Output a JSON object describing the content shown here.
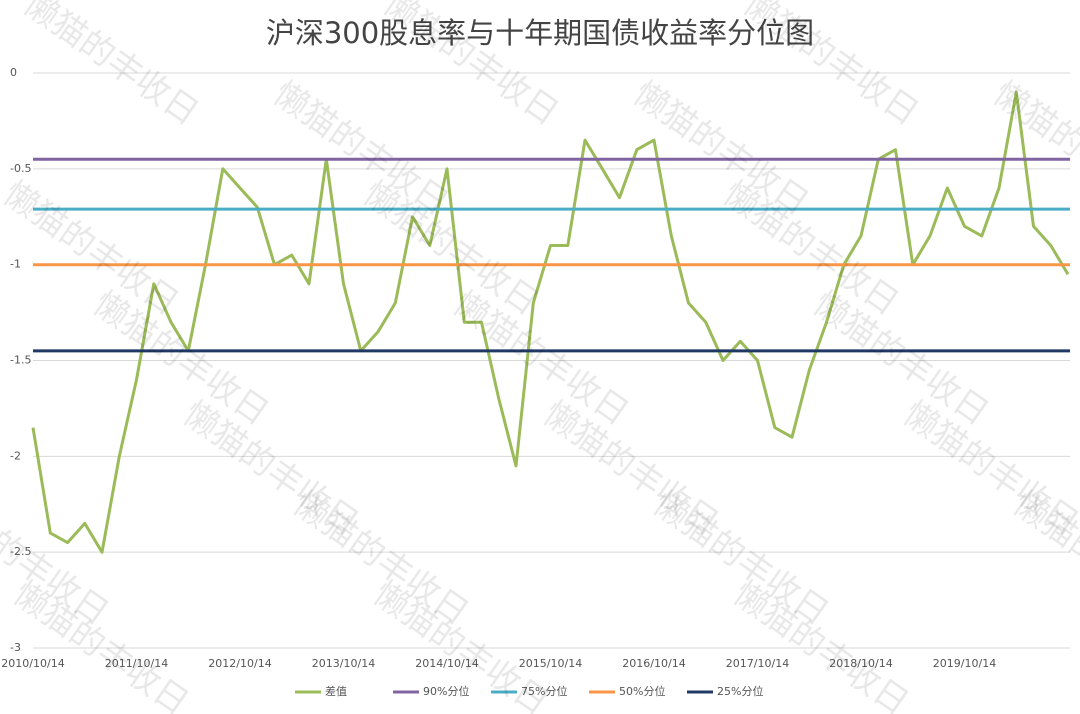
{
  "chart_data": {
    "type": "line",
    "title": "沪深300股息率与十年期国债收益率分位图",
    "watermark": "懒猫的丰收日",
    "categories": [
      "2010/10/14",
      null,
      null,
      null,
      null,
      null,
      "2011/10/14",
      null,
      null,
      null,
      null,
      null,
      "2012/10/14",
      null,
      null,
      null,
      null,
      null,
      "2013/10/14",
      null,
      null,
      null,
      null,
      null,
      "2014/10/14",
      null,
      null,
      null,
      null,
      null,
      "2015/10/14",
      null,
      null,
      null,
      null,
      null,
      "2016/10/14",
      null,
      null,
      null,
      null,
      null,
      "2017/10/14",
      null,
      null,
      null,
      null,
      null,
      "2018/10/14",
      null,
      null,
      null,
      null,
      null,
      "2019/10/14",
      null,
      null,
      null,
      null,
      null,
      null
    ],
    "ylim": [
      -3,
      0
    ],
    "yticks": [
      0,
      -0.5,
      -1,
      -1.5,
      -2,
      -2.5,
      -3
    ],
    "grid": true,
    "legend": "bottom",
    "series": [
      {
        "name": "差值",
        "color": "#9bbb59",
        "values": [
          -1.85,
          -2.4,
          -2.45,
          -2.35,
          -2.5,
          -2.0,
          -1.6,
          -1.1,
          -1.3,
          -1.45,
          -1.0,
          -0.5,
          -0.6,
          -0.7,
          -1.0,
          -0.95,
          -1.1,
          -0.45,
          -1.1,
          -1.45,
          -1.35,
          -1.2,
          -0.75,
          -0.9,
          -0.5,
          -1.3,
          -1.3,
          -1.7,
          -2.05,
          -1.2,
          -0.9,
          -0.9,
          -0.35,
          -0.5,
          -0.65,
          -0.4,
          -0.35,
          -0.85,
          -1.2,
          -1.3,
          -1.5,
          -1.4,
          -1.5,
          -1.85,
          -1.9,
          -1.55,
          -1.3,
          -1.0,
          -0.85,
          -0.45,
          -0.4,
          -1.0,
          -0.85,
          -0.6,
          -0.8,
          -0.85,
          -0.6,
          -0.1,
          -0.8,
          -0.9,
          -1.05
        ]
      },
      {
        "name": "90%分位",
        "color": "#8064a2",
        "values": [
          -0.45,
          -0.45,
          -0.45,
          -0.45,
          -0.45,
          -0.45,
          -0.45,
          -0.45,
          -0.45,
          -0.45,
          -0.45,
          -0.45,
          -0.45,
          -0.45,
          -0.45,
          -0.45,
          -0.45,
          -0.45,
          -0.45,
          -0.45,
          -0.45,
          -0.45,
          -0.45,
          -0.45,
          -0.45,
          -0.45,
          -0.45,
          -0.45,
          -0.45,
          -0.45,
          -0.45,
          -0.45,
          -0.45,
          -0.45,
          -0.45,
          -0.45,
          -0.45,
          -0.45,
          -0.45,
          -0.45,
          -0.45,
          -0.45,
          -0.45,
          -0.45,
          -0.45,
          -0.45,
          -0.45,
          -0.45,
          -0.45,
          -0.45,
          -0.45,
          -0.45,
          -0.45,
          -0.45,
          -0.45,
          -0.45,
          -0.45,
          -0.45,
          -0.45,
          -0.45,
          -0.45
        ]
      },
      {
        "name": "75%分位",
        "color": "#4bacc6",
        "values": [
          -0.71,
          -0.71,
          -0.71,
          -0.71,
          -0.71,
          -0.71,
          -0.71,
          -0.71,
          -0.71,
          -0.71,
          -0.71,
          -0.71,
          -0.71,
          -0.71,
          -0.71,
          -0.71,
          -0.71,
          -0.71,
          -0.71,
          -0.71,
          -0.71,
          -0.71,
          -0.71,
          -0.71,
          -0.71,
          -0.71,
          -0.71,
          -0.71,
          -0.71,
          -0.71,
          -0.71,
          -0.71,
          -0.71,
          -0.71,
          -0.71,
          -0.71,
          -0.71,
          -0.71,
          -0.71,
          -0.71,
          -0.71,
          -0.71,
          -0.71,
          -0.71,
          -0.71,
          -0.71,
          -0.71,
          -0.71,
          -0.71,
          -0.71,
          -0.71,
          -0.71,
          -0.71,
          -0.71,
          -0.71,
          -0.71,
          -0.71,
          -0.71,
          -0.71,
          -0.71,
          -0.71
        ]
      },
      {
        "name": "50%分位",
        "color": "#f79646",
        "values": [
          -1.0,
          -1.0,
          -1.0,
          -1.0,
          -1.0,
          -1.0,
          -1.0,
          -1.0,
          -1.0,
          -1.0,
          -1.0,
          -1.0,
          -1.0,
          -1.0,
          -1.0,
          -1.0,
          -1.0,
          -1.0,
          -1.0,
          -1.0,
          -1.0,
          -1.0,
          -1.0,
          -1.0,
          -1.0,
          -1.0,
          -1.0,
          -1.0,
          -1.0,
          -1.0,
          -1.0,
          -1.0,
          -1.0,
          -1.0,
          -1.0,
          -1.0,
          -1.0,
          -1.0,
          -1.0,
          -1.0,
          -1.0,
          -1.0,
          -1.0,
          -1.0,
          -1.0,
          -1.0,
          -1.0,
          -1.0,
          -1.0,
          -1.0,
          -1.0,
          -1.0,
          -1.0,
          -1.0,
          -1.0,
          -1.0,
          -1.0,
          -1.0,
          -1.0,
          -1.0,
          -1.0
        ]
      },
      {
        "name": "25%分位",
        "color": "#1f3864",
        "values": [
          -1.45,
          -1.45,
          -1.45,
          -1.45,
          -1.45,
          -1.45,
          -1.45,
          -1.45,
          -1.45,
          -1.45,
          -1.45,
          -1.45,
          -1.45,
          -1.45,
          -1.45,
          -1.45,
          -1.45,
          -1.45,
          -1.45,
          -1.45,
          -1.45,
          -1.45,
          -1.45,
          -1.45,
          -1.45,
          -1.45,
          -1.45,
          -1.45,
          -1.45,
          -1.45,
          -1.45,
          -1.45,
          -1.45,
          -1.45,
          -1.45,
          -1.45,
          -1.45,
          -1.45,
          -1.45,
          -1.45,
          -1.45,
          -1.45,
          -1.45,
          -1.45,
          -1.45,
          -1.45,
          -1.45,
          -1.45,
          -1.45,
          -1.45,
          -1.45,
          -1.45,
          -1.45,
          -1.45,
          -1.45,
          -1.45,
          -1.45,
          -1.45,
          -1.45,
          -1.45,
          -1.45
        ]
      }
    ]
  }
}
